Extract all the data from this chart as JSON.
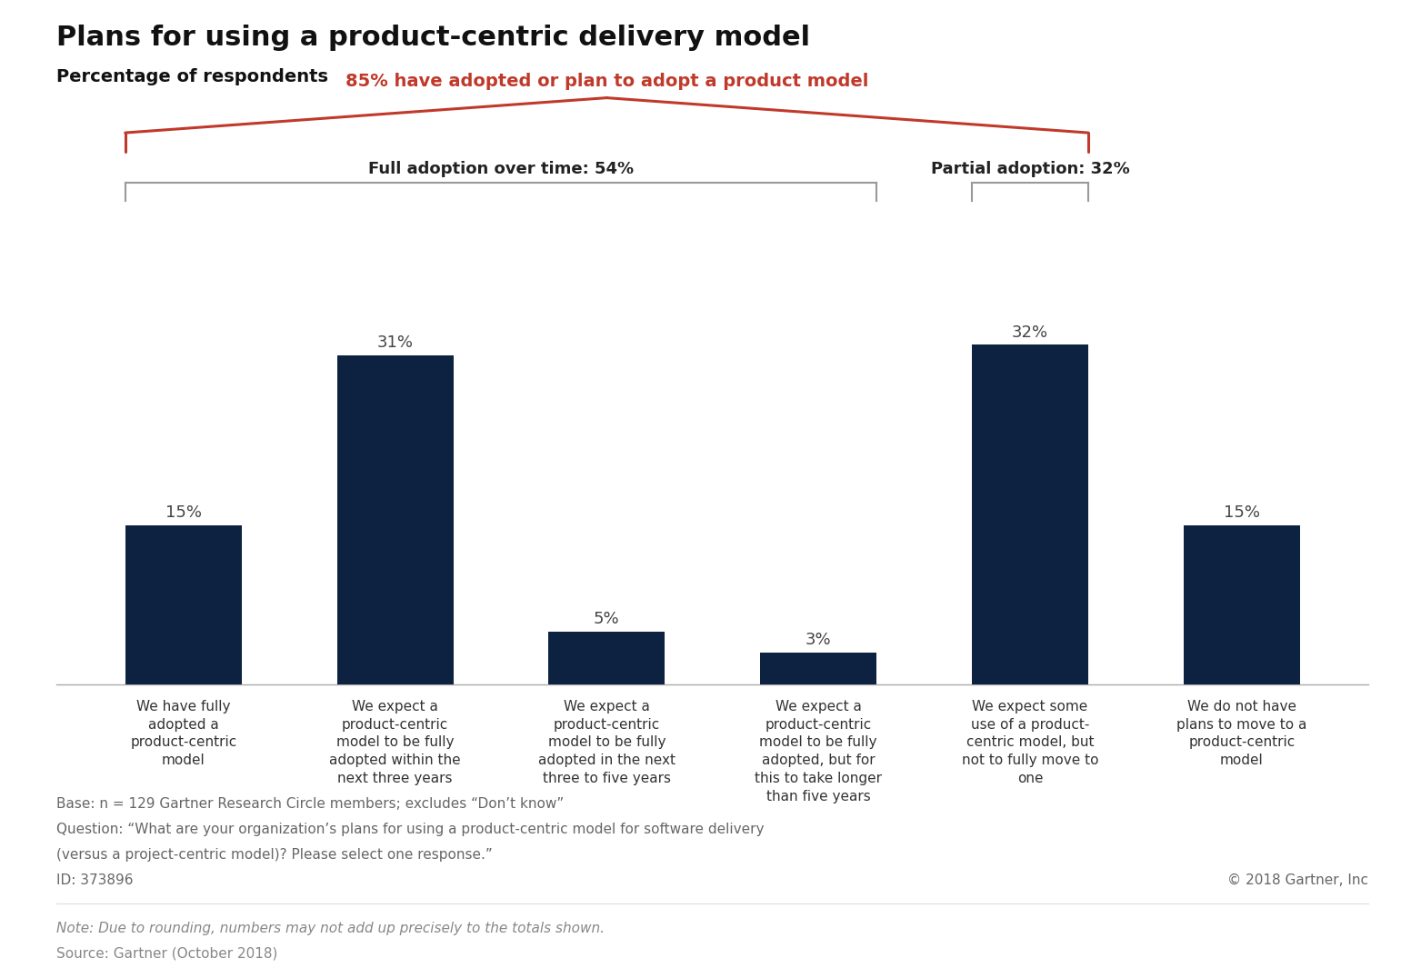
{
  "title": "Plans for using a product-centric delivery model",
  "subtitle": "Percentage of respondents",
  "bar_color": "#0d2240",
  "values": [
    15,
    31,
    5,
    3,
    32,
    15
  ],
  "labels": [
    "We have fully\nadopted a\nproduct-centric\nmodel",
    "We expect a\nproduct-centric\nmodel to be fully\nadopted within the\nnext three years",
    "We expect a\nproduct-centric\nmodel to be fully\nadopted in the next\nthree to five years",
    "We expect a\nproduct-centric\nmodel to be fully\nadopted, but for\nthis to take longer\nthan five years",
    "We expect some\nuse of a product-\ncentric model, but\nnot to fully move to\none",
    "We do not have\nplans to move to a\nproduct-centric\nmodel"
  ],
  "pct_labels": [
    "15%",
    "31%",
    "5%",
    "3%",
    "32%",
    "15%"
  ],
  "bracket_85_label": "85% have adopted or plan to adopt a product model",
  "bracket_85_color": "#c0392b",
  "bracket_54_label": "Full adoption over time: 54%",
  "bracket_32_label": "Partial adoption: 32%",
  "bracket_gray_color": "#999999",
  "footnote_line1": "Base: n = 129 Gartner Research Circle members; excludes “Don’t know”",
  "footnote_line2": "Question: “What are your organization’s plans for using a product-centric model for software delivery",
  "footnote_line3": "(versus a project-centric model)? Please select one response.”",
  "footnote_line4": "ID: 373896",
  "copyright": "© 2018 Gartner, Inc",
  "note_line1": "Note: Due to rounding, numbers may not add up precisely to the totals shown.",
  "note_line2": "Source: Gartner (October 2018)",
  "background_color": "#ffffff",
  "title_fontsize": 22,
  "subtitle_fontsize": 14,
  "label_fontsize": 11,
  "pct_fontsize": 13,
  "footnote_fontsize": 11,
  "note_fontsize": 11
}
